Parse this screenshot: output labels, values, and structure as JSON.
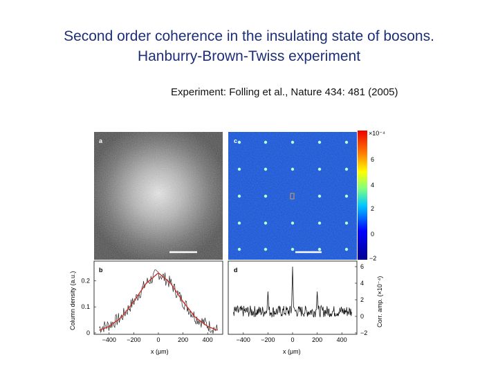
{
  "slide": {
    "title_line1": "Second order coherence in the insulating state of bosons.",
    "title_line2": "Hanburry-Brown-Twiss experiment",
    "citation": "Experiment: Folling et al.,  Nature 434: 481 (2005)"
  },
  "figure": {
    "panel_a": {
      "label": "a"
    },
    "panel_c": {
      "label": "c"
    },
    "panel_b": {
      "label": "b"
    },
    "panel_d": {
      "label": "d"
    },
    "colorbar": {
      "ticks": [
        "6",
        "4",
        "2",
        "0",
        "−2"
      ],
      "multiplier": "×10⁻⁴"
    },
    "colors": {
      "title": "#1d2e78",
      "fit_curve": "#c8342c",
      "map_bg": "#1f4fd0"
    }
  },
  "chart_data": [
    {
      "type": "line",
      "panel": "b",
      "xlabel": "x (μm)",
      "ylabel": "Column density (a.u.)",
      "xticks": [
        "−400",
        "−200",
        "0",
        "200",
        "400"
      ],
      "yticks": [
        "0.2",
        "0.1",
        "0"
      ],
      "xlim": [
        -500,
        500
      ],
      "ylim": [
        0,
        0.27
      ],
      "series": [
        {
          "x": [
            -480,
            -400,
            -300,
            -200,
            -100,
            0,
            100,
            200,
            300,
            400,
            480
          ],
          "values": [
            0.01,
            0.025,
            0.06,
            0.12,
            0.19,
            0.23,
            0.19,
            0.12,
            0.06,
            0.025,
            0.01
          ]
        },
        {
          "x": [
            -480,
            -400,
            -300,
            -200,
            -100,
            0,
            100,
            200,
            300,
            400,
            480
          ],
          "values": [
            0.02,
            0.03,
            0.06,
            0.12,
            0.19,
            0.23,
            0.19,
            0.12,
            0.06,
            0.03,
            0.01
          ]
        }
      ]
    },
    {
      "type": "line",
      "panel": "d",
      "xlabel": "x (μm)",
      "ylabel": "Corr. amp. (×10⁻⁴)",
      "xticks": [
        "−400",
        "−200",
        "0",
        "200",
        "400"
      ],
      "yticks": [
        "6",
        "4",
        "2",
        "0",
        "−2"
      ],
      "xlim": [
        -500,
        500
      ],
      "ylim": [
        -2,
        6.5
      ],
      "series": [
        {
          "x": [
            -480,
            -400,
            -300,
            -200,
            -150,
            -100,
            0,
            100,
            150,
            200,
            300,
            400,
            480
          ],
          "values": [
            0.5,
            1.2,
            0.8,
            3.0,
            1.0,
            0.5,
            6.0,
            0.5,
            1.0,
            3.0,
            0.8,
            1.2,
            0.5
          ]
        }
      ]
    }
  ]
}
